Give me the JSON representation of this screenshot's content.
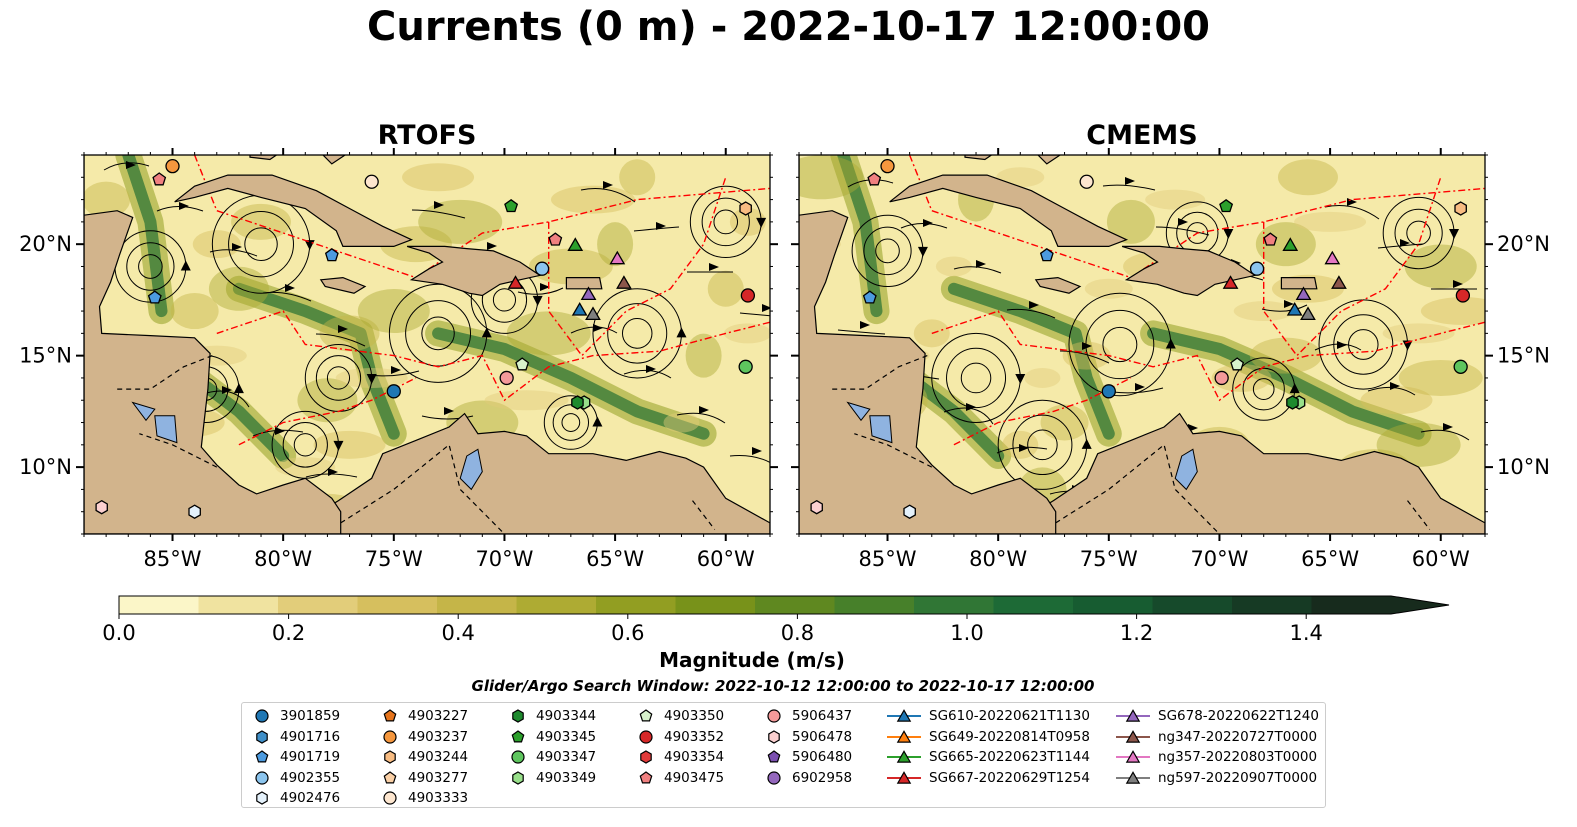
{
  "title": "Currents (0 m) - 2022-10-17 12:00:00",
  "panels": [
    {
      "title": "RTOFS"
    },
    {
      "title": "CMEMS"
    }
  ],
  "axes": {
    "lon_ticks": [
      "85°W",
      "80°W",
      "75°W",
      "70°W",
      "65°W",
      "60°W"
    ],
    "lat_ticks": [
      "20°N",
      "15°N",
      "10°N"
    ],
    "lon_range": [
      -89,
      -58
    ],
    "lat_range": [
      7,
      24
    ]
  },
  "colorbar": {
    "label": "Magnitude (m/s)",
    "ticks": [
      "0.0",
      "0.2",
      "0.4",
      "0.6",
      "0.8",
      "1.0",
      "1.2",
      "1.4"
    ],
    "range": [
      0,
      1.5
    ],
    "colors": [
      "#fbf6c8",
      "#f0e3a0",
      "#e2cd7a",
      "#d6bf5e",
      "#c5b548",
      "#aeab33",
      "#929e22",
      "#78921a",
      "#5f8820",
      "#47802a",
      "#307635",
      "#1d6a36",
      "#175c31",
      "#164a2b",
      "#163a24",
      "#172b1d"
    ]
  },
  "search_window": "Glider/Argo Search Window: 2022-10-12 12:00:00 to 2022-10-17 12:00:00",
  "colors": {
    "land": "#d2b48c",
    "ocean_low": "#f5eaa9",
    "boundary": "#ff0000",
    "lake": "#8fb3e0"
  },
  "legend": {
    "columns": [
      [
        {
          "label": "3901859",
          "marker": "circle",
          "color": "#1f77b4"
        },
        {
          "label": "4901716",
          "marker": "hexagon",
          "color": "#3f8fc8"
        },
        {
          "label": "4901719",
          "marker": "pentagon",
          "color": "#4c9be0"
        },
        {
          "label": "4902355",
          "marker": "circle",
          "color": "#8cc5ee"
        },
        {
          "label": "4902476",
          "marker": "hexagon",
          "color": "#e4f1fb"
        }
      ],
      [
        {
          "label": "4903227",
          "marker": "pentagon",
          "color": "#e6741c"
        },
        {
          "label": "4903237",
          "marker": "circle",
          "color": "#f5973e"
        },
        {
          "label": "4903244",
          "marker": "hexagon",
          "color": "#f8bc82"
        },
        {
          "label": "4903277",
          "marker": "pentagon",
          "color": "#fad0a6"
        },
        {
          "label": "4903333",
          "marker": "circle",
          "color": "#fde6cf"
        }
      ],
      [
        {
          "label": "4903344",
          "marker": "hexagon",
          "color": "#1e8a2e"
        },
        {
          "label": "4903345",
          "marker": "pentagon",
          "color": "#2ca02c"
        },
        {
          "label": "4903347",
          "marker": "circle",
          "color": "#5ec55e"
        },
        {
          "label": "4903349",
          "marker": "hexagon",
          "color": "#98df8a"
        }
      ],
      [
        {
          "label": "4903350",
          "marker": "pentagon",
          "color": "#d8f2cc"
        },
        {
          "label": "4903352",
          "marker": "circle",
          "color": "#d62728"
        },
        {
          "label": "4903354",
          "marker": "hexagon",
          "color": "#e03a3a"
        },
        {
          "label": "4903475",
          "marker": "pentagon",
          "color": "#f08080"
        }
      ],
      [
        {
          "label": "5906437",
          "marker": "circle",
          "color": "#f49a9a"
        },
        {
          "label": "5906478",
          "marker": "hexagon",
          "color": "#fbd0d0"
        },
        {
          "label": "5906480",
          "marker": "pentagon",
          "color": "#7b4fb0"
        },
        {
          "label": "6902958",
          "marker": "circle",
          "color": "#9467bd"
        }
      ],
      [
        {
          "label": "SG610-20220621T1130",
          "marker": "triangle",
          "color": "#1f77b4",
          "line": true
        },
        {
          "label": "SG649-20220814T0958",
          "marker": "triangle",
          "color": "#ff7f0e",
          "line": true
        },
        {
          "label": "SG665-20220623T1144",
          "marker": "triangle",
          "color": "#2ca02c",
          "line": true
        },
        {
          "label": "SG667-20220629T1254",
          "marker": "triangle",
          "color": "#d62728",
          "line": true
        }
      ],
      [
        {
          "label": "SG678-20220622T1240",
          "marker": "triangle",
          "color": "#9467bd",
          "line": true
        },
        {
          "label": "ng347-20220727T0000",
          "marker": "triangle",
          "color": "#8c564b",
          "line": true
        },
        {
          "label": "ng357-20220803T0000",
          "marker": "triangle",
          "color": "#e377c2",
          "line": true
        },
        {
          "label": "ng597-20220907T0000",
          "marker": "triangle",
          "color": "#7f7f7f",
          "line": true
        }
      ]
    ]
  },
  "map_markers": [
    {
      "label": "4903237",
      "lon": -85.0,
      "lat": 23.5,
      "marker": "circle",
      "color": "#f5973e"
    },
    {
      "label": "4903475",
      "lon": -85.6,
      "lat": 22.9,
      "marker": "pentagon",
      "color": "#f08080"
    },
    {
      "label": "4903333",
      "lon": -76.0,
      "lat": 22.8,
      "marker": "circle",
      "color": "#fde6cf"
    },
    {
      "label": "4903345",
      "lon": -69.7,
      "lat": 21.7,
      "marker": "pentagon",
      "color": "#2ca02c"
    },
    {
      "label": "4903244",
      "lon": -59.1,
      "lat": 21.6,
      "marker": "hexagon",
      "color": "#f8bc82"
    },
    {
      "label": "4903475",
      "lon": -67.7,
      "lat": 20.2,
      "marker": "pentagon",
      "color": "#f08080"
    },
    {
      "label": "SG665-20220623T1144",
      "lon": -66.8,
      "lat": 19.9,
      "marker": "triangle",
      "color": "#2ca02c"
    },
    {
      "label": "4901719",
      "lon": -77.8,
      "lat": 19.5,
      "marker": "pentagon",
      "color": "#4c9be0"
    },
    {
      "label": "ng357-20220803T0000",
      "lon": -64.9,
      "lat": 19.3,
      "marker": "triangle",
      "color": "#e377c2"
    },
    {
      "label": "4902355",
      "lon": -68.3,
      "lat": 18.9,
      "marker": "circle",
      "color": "#8cc5ee"
    },
    {
      "label": "SG667-20220629T1254",
      "lon": -69.5,
      "lat": 18.2,
      "marker": "triangle",
      "color": "#d62728"
    },
    {
      "label": "ng347-20220727T0000",
      "lon": -64.6,
      "lat": 18.2,
      "marker": "triangle",
      "color": "#8c564b"
    },
    {
      "label": "SG678-20220622T1240",
      "lon": -66.2,
      "lat": 17.7,
      "marker": "triangle",
      "color": "#9467bd"
    },
    {
      "label": "4903352",
      "lon": -59.0,
      "lat": 17.7,
      "marker": "circle",
      "color": "#d62728"
    },
    {
      "label": "4901719",
      "lon": -85.8,
      "lat": 17.6,
      "marker": "pentagon",
      "color": "#4c9be0"
    },
    {
      "label": "SG610-20220621T1130",
      "lon": -66.6,
      "lat": 17.0,
      "marker": "triangle",
      "color": "#1f77b4"
    },
    {
      "label": "ng597-20220907T0000",
      "lon": -66.0,
      "lat": 16.8,
      "marker": "triangle",
      "color": "#7f7f7f"
    },
    {
      "label": "4903350",
      "lon": -69.2,
      "lat": 14.6,
      "marker": "pentagon",
      "color": "#d8f2cc"
    },
    {
      "label": "4903347",
      "lon": -59.1,
      "lat": 14.5,
      "marker": "circle",
      "color": "#5ec55e"
    },
    {
      "label": "5906437",
      "lon": -69.9,
      "lat": 14.0,
      "marker": "circle",
      "color": "#f49a9a"
    },
    {
      "label": "3901859",
      "lon": -75.0,
      "lat": 13.4,
      "marker": "circle",
      "color": "#1f77b4"
    },
    {
      "label": "4903349",
      "lon": -66.4,
      "lat": 12.9,
      "marker": "hexagon",
      "color": "#98df8a"
    },
    {
      "label": "4903344",
      "lon": -66.7,
      "lat": 12.9,
      "marker": "hexagon",
      "color": "#1e8a2e"
    },
    {
      "label": "5906478",
      "lon": -88.2,
      "lat": 8.2,
      "marker": "hexagon",
      "color": "#fbd0d0"
    },
    {
      "label": "4902476",
      "lon": -84.0,
      "lat": 8.0,
      "marker": "hexagon",
      "color": "#e4f1fb"
    }
  ]
}
